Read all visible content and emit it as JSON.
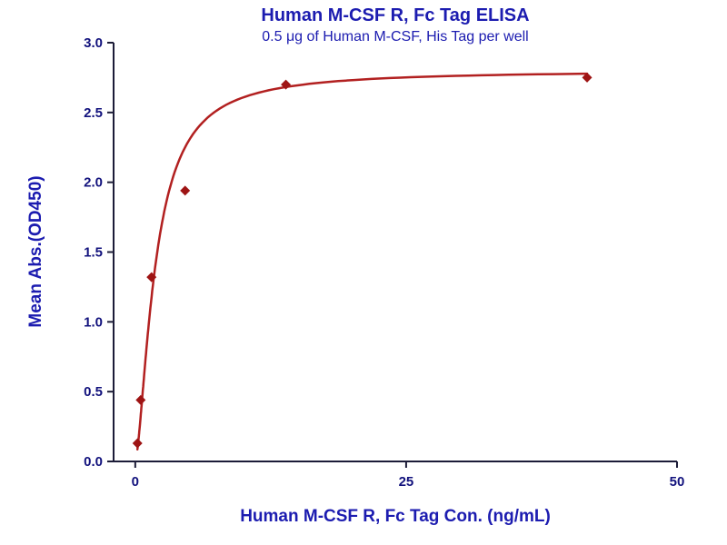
{
  "chart_data": {
    "type": "scatter",
    "title": "Human M-CSF R, Fc Tag ELISA",
    "subtitle": "0.5 μg of Human M-CSF, His Tag per well",
    "xlabel": "Human M-CSF R, Fc Tag Con. (ng/mL)",
    "ylabel": "Mean Abs.(OD450)",
    "xlim": [
      -2,
      50
    ],
    "ylim": [
      0,
      3
    ],
    "xticks": [
      0,
      25,
      50
    ],
    "yticks": [
      0.0,
      0.5,
      1.0,
      1.5,
      2.0,
      2.5,
      3.0
    ],
    "grid": false,
    "legend": "none",
    "points": {
      "x": [
        0.2,
        0.5,
        1.5,
        4.6,
        13.9,
        41.7
      ],
      "y": [
        0.13,
        0.44,
        1.32,
        1.94,
        2.7,
        2.75
      ]
    },
    "fit_curve": {
      "model": "hill",
      "vmax": 2.8,
      "ec50": 1.85,
      "hill": 1.55,
      "x_start": 0.2,
      "x_end": 41.7
    },
    "colors": {
      "curve": "#b22020",
      "marker": "#9e1414",
      "axis": "#1c1c38",
      "title": "#1c1cb0",
      "tick": "#12127d"
    }
  }
}
